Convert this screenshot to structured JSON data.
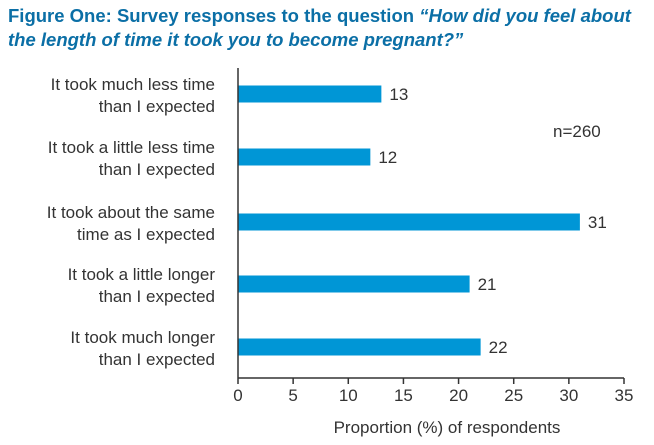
{
  "chart_data": {
    "type": "bar",
    "orientation": "horizontal",
    "title": {
      "prefix": "Figure One: Survey responses to the question ",
      "question": "“How did you feel about the length of time it took you to become pregnant?”"
    },
    "categories": [
      [
        "It took much less time",
        "than I expected"
      ],
      [
        "It took a little less time",
        "than I expected"
      ],
      [
        "It took about the same",
        "time as I expected"
      ],
      [
        "It took a little longer",
        "than I expected"
      ],
      [
        "It took much longer",
        "than I expected"
      ]
    ],
    "values": [
      13,
      12,
      31,
      21,
      22
    ],
    "value_labels": [
      "13",
      "12",
      "31",
      "21",
      "22"
    ],
    "xlabel": "Proportion (%) of respondents",
    "xlim": [
      0,
      35
    ],
    "xticks": [
      "0",
      "5",
      "10",
      "15",
      "20",
      "25",
      "30",
      "35"
    ],
    "annotation": "n=260",
    "grid": false,
    "bar_color": "#0096d6",
    "title_color": "#0b6fa6"
  }
}
